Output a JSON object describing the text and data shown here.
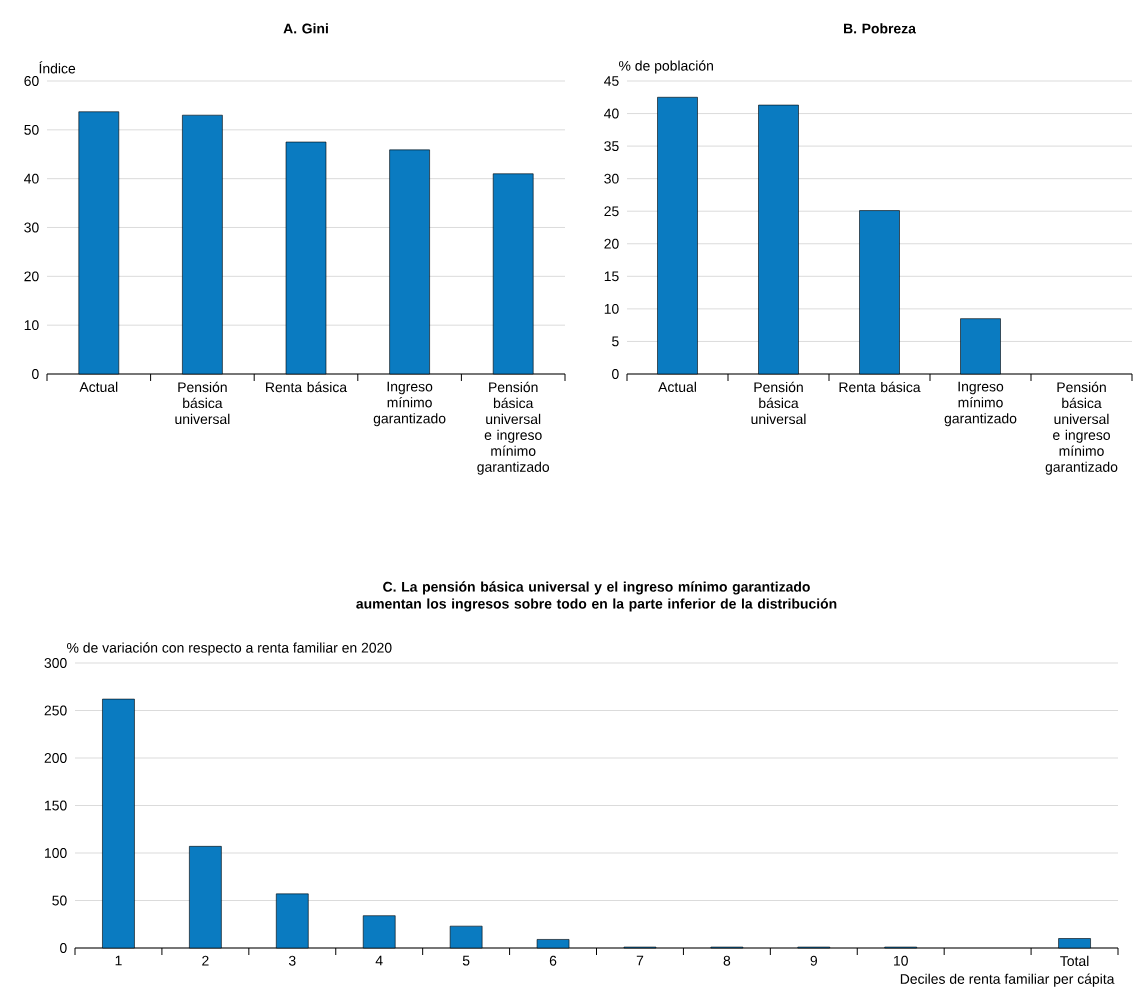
{
  "chart_data": [
    {
      "type": "bar",
      "title": "A. Gini",
      "ylabel": "Índice",
      "categories": [
        "Actual",
        "Pensión básica universal",
        "Renta básica",
        "Ingreso mínimo garantizado",
        "Pensión básica universal e ingreso mínimo garantizado"
      ],
      "values": [
        53.7,
        53.0,
        47.5,
        45.9,
        41.0
      ],
      "color": "#0a7bc1",
      "ylim": [
        0,
        60
      ],
      "yticks": [
        0,
        10,
        20,
        30,
        40,
        50,
        60
      ],
      "grid": "y"
    },
    {
      "type": "bar",
      "title": "B. Pobreza",
      "ylabel": "% de población",
      "categories": [
        "Actual",
        "Pensión básica universal",
        "Renta básica",
        "Ingreso mínimo garantizado",
        "Pensión básica universal e ingreso mínimo garantizado"
      ],
      "values": [
        42.5,
        41.3,
        25.1,
        8.5,
        null
      ],
      "color": "#0a7bc1",
      "ylim": [
        0,
        45
      ],
      "yticks": [
        0,
        5,
        10,
        15,
        20,
        25,
        30,
        35,
        40,
        45
      ],
      "grid": "y"
    },
    {
      "type": "bar",
      "title": "C. La pensión básica universal y el ingreso mínimo garantizado aumentan los ingresos sobre todo en la parte inferior de la distribución",
      "ylabel": "% de variación con respecto a renta familiar en 2020",
      "xlabel": "Deciles de renta familiar per cápita",
      "categories": [
        "1",
        "2",
        "3",
        "4",
        "5",
        "6",
        "7",
        "8",
        "9",
        "10",
        null,
        "Total"
      ],
      "values": [
        262,
        107,
        57,
        34,
        23,
        9,
        1,
        1,
        1,
        1,
        null,
        10
      ],
      "color": "#0a7bc1",
      "ylim": [
        0,
        300
      ],
      "yticks": [
        0,
        50,
        100,
        150,
        200,
        250,
        300
      ],
      "grid": "y"
    }
  ]
}
